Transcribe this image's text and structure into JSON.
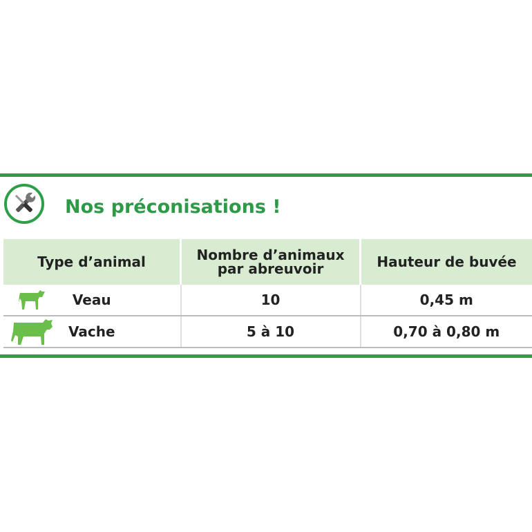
{
  "title": "Nos préconisations !",
  "icon": "tools-icon",
  "colors": {
    "accent": "#2e9e48",
    "header_bg": "#d8ecd2",
    "animal_icon": "#6abf4b"
  },
  "table": {
    "headers": [
      "Type d’animal",
      "Nombre d’animaux",
      "par abreuvoir",
      "Hauteur de buvée"
    ],
    "rows": [
      {
        "icon": "calf-icon",
        "animal": "Veau",
        "count": "10",
        "height": "0,45 m"
      },
      {
        "icon": "cow-icon",
        "animal": "Vache",
        "count": "5 à 10",
        "height": "0,70 à 0,80 m"
      }
    ]
  }
}
